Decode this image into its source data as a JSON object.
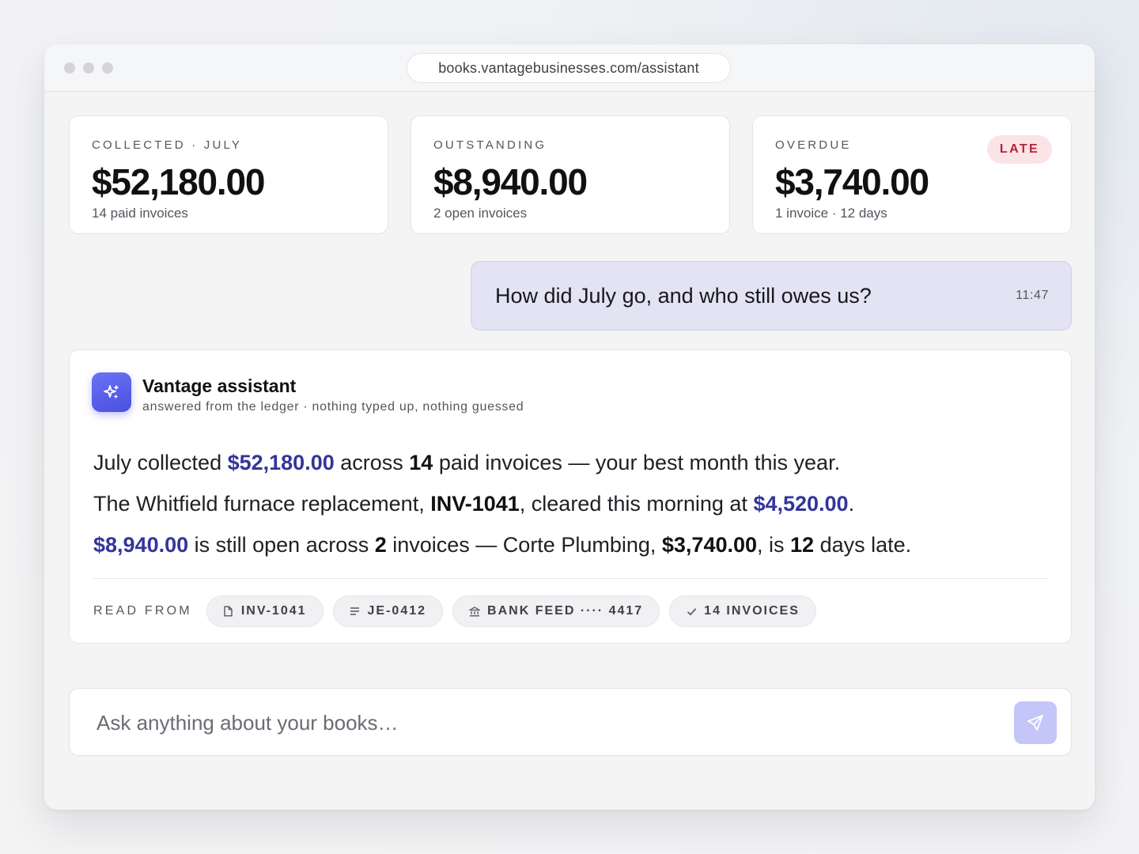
{
  "browser": {
    "url": "books.vantagebusinesses.com/assistant"
  },
  "stats": [
    {
      "label": "COLLECTED · JULY",
      "value": "$52,180.00",
      "sub": "14 paid invoices"
    },
    {
      "label": "OUTSTANDING",
      "value": "$8,940.00",
      "sub": "2 open invoices"
    },
    {
      "label": "OVERDUE",
      "value": "$3,740.00",
      "sub": "1 invoice · 12 days",
      "badge": "LATE"
    }
  ],
  "user_message": {
    "text": "How did July go, and who still owes us?",
    "time": "11:47"
  },
  "assistant": {
    "name": "Vantage assistant",
    "subtitle": "answered from the ledger · nothing typed up, nothing guessed",
    "line1": {
      "a": "July collected ",
      "amount": "$52,180.00",
      "b": " across ",
      "count": "14",
      "c": " paid invoices — your best month this year."
    },
    "line2": {
      "a": "The Whitfield furnace replacement, ",
      "invoice": "INV-1041",
      "b": ", cleared this morning at ",
      "amount": "$4,520.00",
      "c": "."
    },
    "line3": {
      "amount": "$8,940.00",
      "a": " is still open across ",
      "count": "2",
      "b": " invoices — Corte Plumbing, ",
      "late_amount": "$3,740.00",
      "c": ", is ",
      "days": "12",
      "d": " days late."
    },
    "read_from_label": "READ FROM",
    "sources": [
      {
        "icon": "document-icon",
        "label": "INV-1041"
      },
      {
        "icon": "journal-lines-icon",
        "label": "JE-0412"
      },
      {
        "icon": "bank-icon",
        "label": "BANK FEED ···· 4417"
      },
      {
        "icon": "check-icon",
        "label": "14 INVOICES"
      }
    ]
  },
  "composer": {
    "placeholder": "Ask anything about your books…",
    "value": ""
  },
  "colors": {
    "accent": "#32359a",
    "avatar": "#5b61ec",
    "late_badge_bg": "#fbe4e6",
    "late_badge_text": "#b4233a",
    "user_bubble": "#e3e3f4",
    "send_button": "#c3c6f7"
  }
}
